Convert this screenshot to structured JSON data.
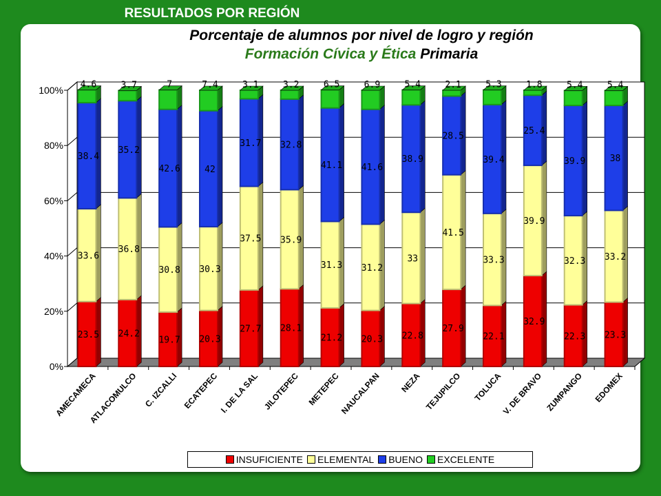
{
  "header": {
    "tab_label": "RESULTADOS POR REGIÓN"
  },
  "title": {
    "line1": "Porcentaje de alumnos por nivel de logro y región",
    "line2_part1": "Formación Cívica y Ética",
    "line2_part2": " Primaria"
  },
  "chart_data": {
    "type": "bar",
    "stacked": true,
    "categories": [
      "AMECAMECA",
      "ATLACOMULCO",
      "C. IZCALLI",
      "ECATEPEC",
      "I. DE LA SAL",
      "JILOTEPEC",
      "METEPEC",
      "NAUCALPAN",
      "NEZA",
      "TEJUPILCO",
      "TOLUCA",
      "V. DE BRAVO",
      "ZUMPANGO",
      "EDOMEX"
    ],
    "series": [
      {
        "name": "INSUFICIENTE",
        "color": "#ee0000",
        "values": [
          23.5,
          24.2,
          19.7,
          20.3,
          27.7,
          28.1,
          21.2,
          20.3,
          22.8,
          27.9,
          22.1,
          32.9,
          22.3,
          23.3
        ]
      },
      {
        "name": "ELEMENTAL",
        "color": "#ffff99",
        "values": [
          33.6,
          36.8,
          30.8,
          30.3,
          37.5,
          35.9,
          31.3,
          31.2,
          33,
          41.5,
          33.3,
          39.9,
          32.3,
          33.2
        ]
      },
      {
        "name": "BUENO",
        "color": "#1e3ee8",
        "values": [
          38.4,
          35.2,
          42.6,
          42,
          31.7,
          32.8,
          41.1,
          41.6,
          38.9,
          28.5,
          39.4,
          25.4,
          39.9,
          38
        ]
      },
      {
        "name": "EXCELENTE",
        "color": "#22cc22",
        "values": [
          4.6,
          3.7,
          7,
          7.4,
          3.1,
          3.2,
          6.5,
          6.9,
          5.4,
          2.1,
          5.3,
          1.8,
          5.4,
          5.4
        ]
      }
    ],
    "y_ticks": [
      "0%",
      "20%",
      "40%",
      "60%",
      "80%",
      "100%"
    ],
    "ylim": [
      0,
      100
    ],
    "grid": true,
    "legend_position": "bottom"
  }
}
